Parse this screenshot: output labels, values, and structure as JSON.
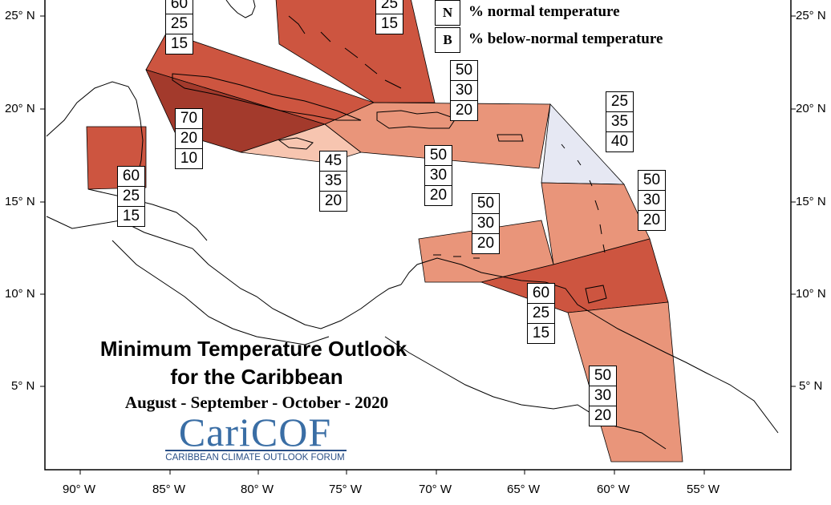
{
  "title_line1": "Minimum Temperature Outlook",
  "title_line2": "for the Caribbean",
  "season": "August - September - October - 2020",
  "logo": {
    "name": "CariCOF",
    "tagline": "CARIBBEAN CLIMATE OUTLOOK FORUM"
  },
  "legend": [
    {
      "key": "N",
      "text": "% normal temperature"
    },
    {
      "key": "B",
      "text": "% below-normal temperature"
    }
  ],
  "lat_labels": [
    "25° N",
    "20° N",
    "15° N",
    "10° N",
    "5° N"
  ],
  "lon_labels": [
    "90° W",
    "85° W",
    "80° W",
    "75° W",
    "70° W",
    "65° W",
    "60° W",
    "55° W"
  ],
  "colors": {
    "above_70": "#a33a2c",
    "above_60": "#cd5540",
    "above_50": "#e9957a",
    "above_45": "#f7c5b0",
    "below_40": "#e6e8f3",
    "coast": "#000000"
  },
  "forecast_boxes": [
    {
      "region": "bahamas-west",
      "above": "60",
      "normal": "25",
      "below": "15"
    },
    {
      "region": "bahamas-east",
      "above": "",
      "normal": "25",
      "below": "15"
    },
    {
      "region": "cuba",
      "above": "70",
      "normal": "20",
      "below": "10"
    },
    {
      "region": "belize",
      "above": "60",
      "normal": "25",
      "below": "15"
    },
    {
      "region": "jamaica",
      "above": "45",
      "normal": "35",
      "below": "20"
    },
    {
      "region": "hispaniola",
      "above": "50",
      "normal": "30",
      "below": "20"
    },
    {
      "region": "puerto-rico",
      "above": "50",
      "normal": "30",
      "below": "20"
    },
    {
      "region": "northern-leewards",
      "above": "25",
      "normal": "35",
      "below": "40"
    },
    {
      "region": "windwards",
      "above": "50",
      "normal": "30",
      "below": "20"
    },
    {
      "region": "abc-islands",
      "above": "50",
      "normal": "30",
      "below": "20"
    },
    {
      "region": "trinidad",
      "above": "60",
      "normal": "25",
      "below": "15"
    },
    {
      "region": "guianas",
      "above": "50",
      "normal": "30",
      "below": "20"
    }
  ]
}
